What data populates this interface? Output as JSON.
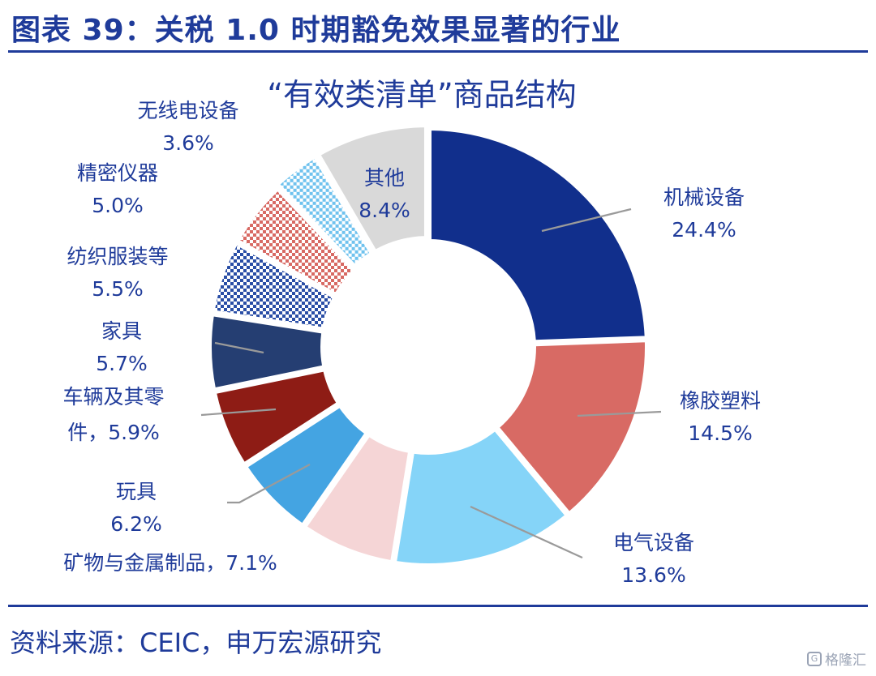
{
  "figure": {
    "title": "图表 39：关税 1.0 时期豁免效果显著的行业",
    "source": "资料来源：CEIC，申万宏源研究",
    "watermark": "格隆汇"
  },
  "colors": {
    "brand": "#1f3b9a",
    "leader": "#9a9a9a"
  },
  "chart_data": {
    "type": "pie",
    "donut": true,
    "title": "“有效类清单”商品结构",
    "unit": "%",
    "slices": [
      {
        "name": "机械设备",
        "value": 24.4,
        "label": "24.4%",
        "color": "#112f8c",
        "pattern": "solid"
      },
      {
        "name": "橡胶塑料",
        "value": 14.5,
        "label": "14.5%",
        "color": "#d86a64",
        "pattern": "solid"
      },
      {
        "name": "电气设备",
        "value": 13.6,
        "label": "13.6%",
        "color": "#85d4f8",
        "pattern": "solid"
      },
      {
        "name": "矿物与金属制品",
        "value": 7.1,
        "label": "7.1%",
        "color": "#f5d5d6",
        "pattern": "solid"
      },
      {
        "name": "玩具",
        "value": 6.2,
        "label": "6.2%",
        "color": "#44a4e2",
        "pattern": "solid"
      },
      {
        "name": "车辆及其零件",
        "value": 5.9,
        "label": "5.9%",
        "color": "#8e1c15",
        "pattern": "solid"
      },
      {
        "name": "家具",
        "value": 5.7,
        "label": "5.7%",
        "color": "#253e72",
        "pattern": "solid"
      },
      {
        "name": "纺织服装等",
        "value": 5.5,
        "label": "5.5%",
        "color": "#2a4ea6",
        "pattern": "check"
      },
      {
        "name": "精密仪器",
        "value": 5.0,
        "label": "5.0%",
        "color": "#d86a64",
        "pattern": "check"
      },
      {
        "name": "无线电设备",
        "value": 3.6,
        "label": "3.6%",
        "color": "#6fc2ee",
        "pattern": "check"
      },
      {
        "name": "其他",
        "value": 8.4,
        "label": "8.4%",
        "color": "#d9d9d9",
        "pattern": "solid"
      }
    ]
  }
}
